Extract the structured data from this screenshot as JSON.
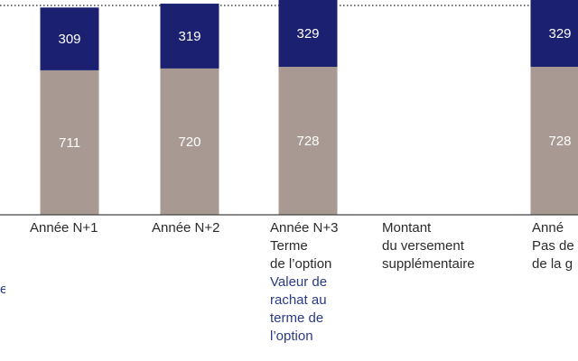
{
  "chart_data": {
    "type": "bar",
    "stacked": true,
    "categories": [
      "Année N+1",
      "Année N+2",
      "Année N+3",
      "Montant",
      "Anné"
    ],
    "category_lines": [
      [
        "Année N+1"
      ],
      [
        "Année N+2"
      ],
      [
        "Année N+3",
        "Terme",
        "de l’option"
      ],
      [
        "Montant",
        "du versement",
        "supplémentaire"
      ],
      [
        "Anné",
        "Pas de",
        "de la g"
      ]
    ],
    "category_notes": [
      [],
      [],
      [
        "Valeur de",
        "rachat au",
        "terme de",
        "l’option"
      ],
      [],
      []
    ],
    "series": [
      {
        "values": [
          711,
          720,
          728,
          null,
          728
        ]
      },
      {
        "values": [
          309,
          319,
          329,
          null,
          329
        ]
      }
    ],
    "colors": [
      "#a89a92",
      "#1b2170"
    ],
    "label_colors": [
      "#ffffff",
      "#ffffff"
    ],
    "reference_line": {
      "style": "dotted",
      "value": 1030
    },
    "grid": false,
    "ylim": [
      0,
      1057
    ]
  },
  "edge_text": "e"
}
